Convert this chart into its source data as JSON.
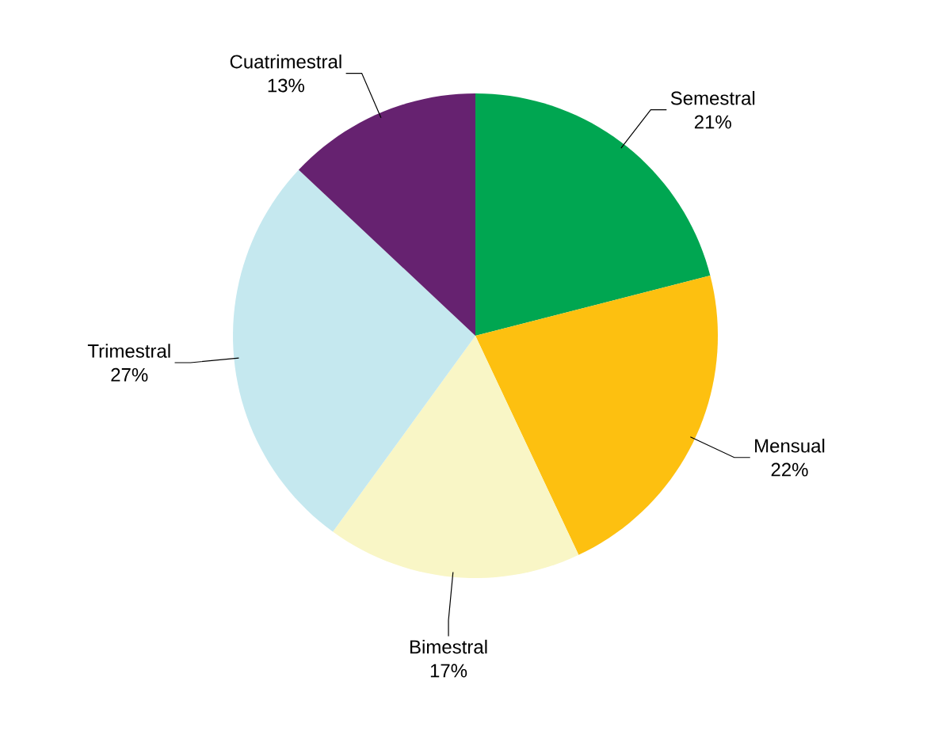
{
  "chart_data": {
    "type": "pie",
    "categories": [
      "Semestral",
      "Mensual",
      "Bimestral",
      "Trimestral",
      "Cuatrimestral"
    ],
    "values": [
      21,
      22,
      17,
      27,
      13
    ],
    "value_labels": [
      "21%",
      "22%",
      "17%",
      "27%",
      "13%"
    ],
    "colors": [
      "#00a651",
      "#fdc010",
      "#f9f6c6",
      "#c5e8ef",
      "#662270"
    ]
  }
}
